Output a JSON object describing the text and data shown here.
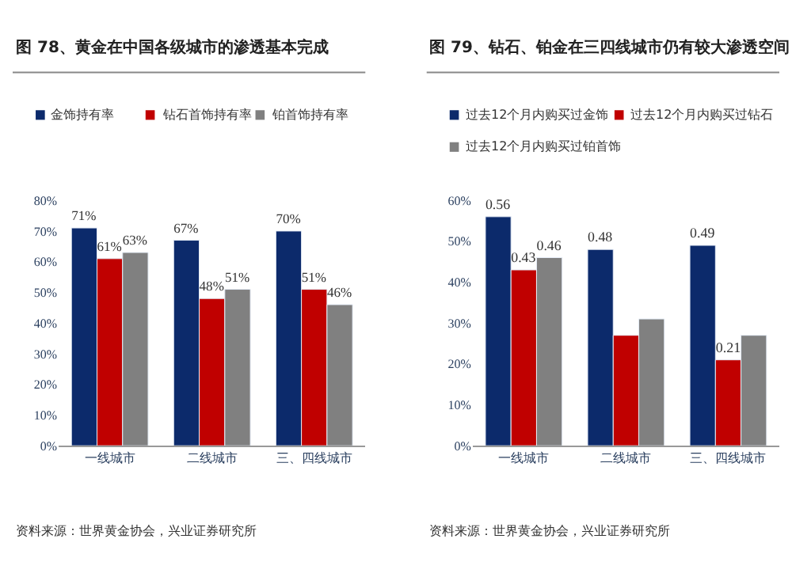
{
  "chart_data": [
    {
      "type": "bar",
      "title": "图 78、黄金在中国各级城市的渗透基本完成",
      "categories": [
        "一线城市",
        "二线城市",
        "三、四线城市"
      ],
      "series": [
        {
          "name": "金饰持有率",
          "color": "#0c2a6b",
          "values": [
            71,
            67,
            70
          ],
          "value_labels": [
            "71%",
            "67%",
            "70%"
          ]
        },
        {
          "name": "钻石首饰持有率",
          "color": "#c00000",
          "values": [
            61,
            48,
            51
          ],
          "value_labels": [
            "61%",
            "48%",
            "51%"
          ]
        },
        {
          "name": "铂首饰持有率",
          "color": "#808080",
          "values": [
            63,
            51,
            46
          ],
          "value_labels": [
            "63%",
            "51%",
            "46%"
          ]
        }
      ],
      "ylim": [
        0,
        80
      ],
      "yticks": [
        {
          "value": 0,
          "label": "0%"
        },
        {
          "value": 10,
          "label": "10%"
        },
        {
          "value": 20,
          "label": "20%"
        },
        {
          "value": 30,
          "label": "30%"
        },
        {
          "value": 40,
          "label": "40%"
        },
        {
          "value": 50,
          "label": "50%"
        },
        {
          "value": 60,
          "label": "60%"
        },
        {
          "value": 70,
          "label": "70%"
        },
        {
          "value": 80,
          "label": "80%"
        }
      ],
      "legend": "top",
      "annotations": [
        "资料来源：世界黄金协会，兴业证券研究所"
      ]
    },
    {
      "type": "bar",
      "title": "图 79、钻石、铂金在三四线城市仍有较大渗透空间",
      "categories": [
        "一线城市",
        "二线城市",
        "三、四线城市"
      ],
      "series": [
        {
          "name": "过去12个月内购买过金饰",
          "color": "#0c2a6b",
          "values": [
            0.56,
            0.48,
            0.49
          ],
          "value_labels": [
            "0.56",
            "0.48",
            "0.49"
          ]
        },
        {
          "name": "过去12个月内购买过钻石",
          "color": "#c00000",
          "values": [
            0.43,
            0.27,
            0.21
          ],
          "value_labels": [
            "0.43",
            null,
            "0.21"
          ]
        },
        {
          "name": "过去12个月内购买过铂首饰",
          "color": "#808080",
          "values": [
            0.46,
            0.31,
            0.27
          ],
          "value_labels": [
            "0.46",
            null,
            null
          ]
        }
      ],
      "ylim": [
        0,
        0.6
      ],
      "yticks": [
        {
          "value": 0,
          "label": "0%"
        },
        {
          "value": 0.1,
          "label": "10%"
        },
        {
          "value": 0.2,
          "label": "20%"
        },
        {
          "value": 0.3,
          "label": "30%"
        },
        {
          "value": 0.4,
          "label": "40%"
        },
        {
          "value": 0.5,
          "label": "50%"
        },
        {
          "value": 0.6,
          "label": "60%"
        }
      ],
      "legend": "top",
      "annotations": [
        "资料来源：世界黄金协会，兴业证券研究所"
      ]
    }
  ]
}
